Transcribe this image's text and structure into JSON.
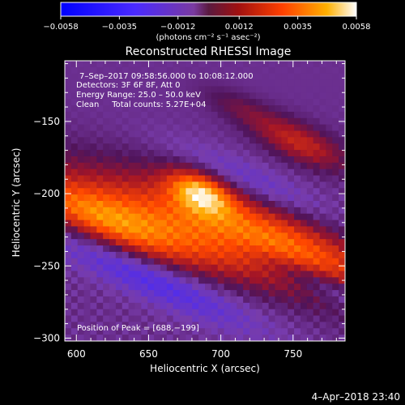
{
  "chart_data": {
    "type": "heatmap",
    "title": "Reconstructed RHESSI Image",
    "xlabel": "Heliocentric X (arcsec)",
    "ylabel": "Heliocentric Y (arcsec)",
    "xlim": [
      592,
      786
    ],
    "ylim": [
      -302,
      -108
    ],
    "x_ticks": [
      600,
      650,
      700,
      750
    ],
    "y_ticks": [
      -300,
      -250,
      -200,
      -150
    ],
    "colorbar": {
      "ticks": [
        -0.0058,
        -0.0035,
        -0.0012,
        0.0012,
        0.0035,
        0.0058
      ],
      "tick_labels": [
        "−0.0058",
        "−0.0035",
        "−0.0012",
        "0.0012",
        "0.0035",
        "0.0058"
      ],
      "units": "(photons cm⁻² s⁻¹ asec⁻²)",
      "range": [
        -0.0058,
        0.0058
      ]
    },
    "annotations": [
      "7–Sep–2017 09:58:56.000 to 10:08:12.000",
      "Detectors: 3F 6F 8F, Att 0",
      "Energy Range: 25.0 – 50.0 keV",
      "Clean     Total counts: 5.27E+04"
    ],
    "peak_label": "Position of Peak = [688,−199]",
    "peak": [
      688,
      -199
    ],
    "peak_value": 0.0058
  },
  "footer": {
    "date": "4–Apr–2018 23:40"
  }
}
